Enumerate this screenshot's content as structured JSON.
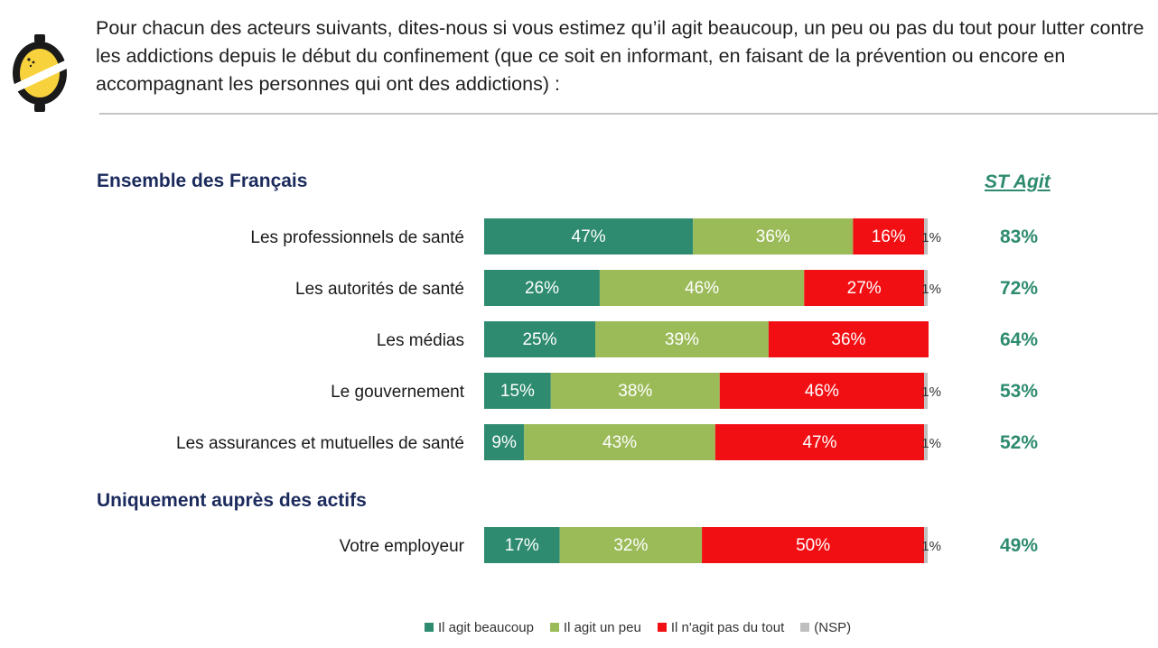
{
  "question": "Pour chacun des acteurs suivants, dites-nous si vous estimez qu’il agit beaucoup, un peu ou pas du tout pour lutter contre les addictions depuis le début du confinement  (que ce soit en informant, en faisant de la prévention ou encore en accompagnant les personnes qui ont des addictions) :",
  "colors": {
    "beaucoup": "#2e8b6f",
    "un_peu": "#9bbb59",
    "pas_du_tout": "#f20f14",
    "nsp": "#bfbfbf",
    "st": "#2e8b6f",
    "section": "#1b2a5c",
    "logo_yellow": "#f7d23c"
  },
  "chart_data": {
    "type": "bar",
    "orientation": "horizontal",
    "stacked": true,
    "sections": [
      {
        "title": "Ensemble des Français",
        "rows": [
          0,
          1,
          2,
          3,
          4
        ]
      },
      {
        "title": "Uniquement auprès des actifs",
        "rows": [
          5
        ]
      }
    ],
    "st_header": "ST Agit",
    "categories": [
      "Les professionnels de santé",
      "Les autorités de santé",
      "Les médias",
      "Le gouvernement",
      "Les assurances et mutuelles de santé",
      "Votre employeur"
    ],
    "series": [
      {
        "name": "Il agit beaucoup",
        "key": "beaucoup",
        "values": [
          47,
          26,
          25,
          15,
          9,
          17
        ]
      },
      {
        "name": "Il agit un peu",
        "key": "un_peu",
        "values": [
          36,
          46,
          39,
          38,
          43,
          32
        ]
      },
      {
        "name": "Il n'agit pas du tout",
        "key": "pas_du_tout",
        "values": [
          16,
          27,
          36,
          46,
          47,
          50
        ]
      },
      {
        "name": "(NSP)",
        "key": "nsp",
        "values": [
          1,
          1,
          null,
          1,
          1,
          1
        ]
      }
    ],
    "st_agit": [
      "83%",
      "72%",
      "64%",
      "53%",
      "52%",
      "49%"
    ],
    "value_suffix": "%",
    "xlim": [
      0,
      100
    ],
    "legend_position": "bottom"
  }
}
